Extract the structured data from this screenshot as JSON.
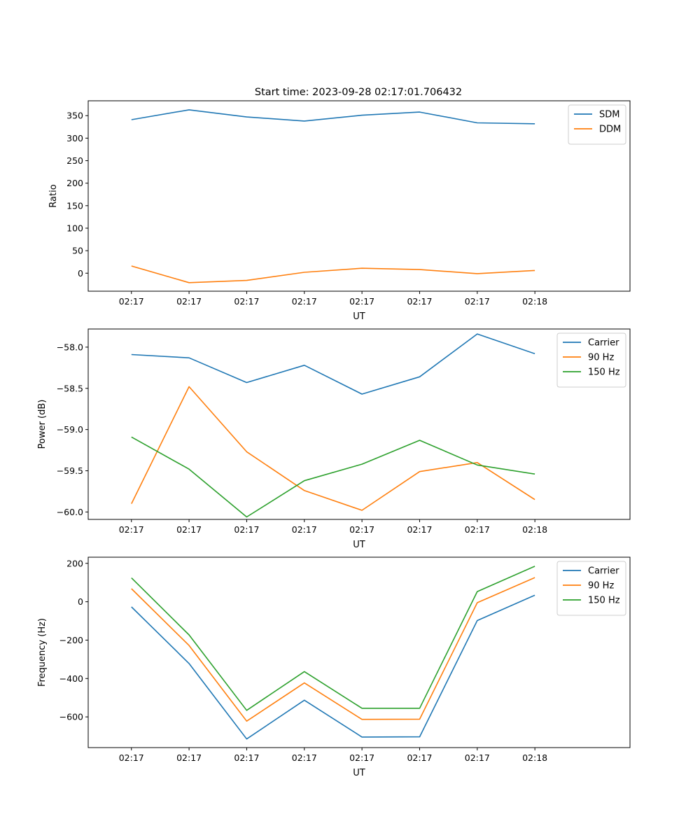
{
  "figure_title": "Start time: 2023-09-28 02:17:01.706432",
  "chart_data": [
    {
      "type": "line",
      "title": "Start time: 2023-09-28 02:17:01.706432",
      "xlabel": "UT",
      "ylabel": "Ratio",
      "x_tick_labels": [
        "02:17",
        "02:17",
        "02:17",
        "02:17",
        "02:17",
        "02:17",
        "02:17",
        "02:18"
      ],
      "x_index": [
        0,
        1,
        2,
        3,
        4,
        5,
        6,
        7
      ],
      "xlim": [
        -0.75,
        8.65
      ],
      "ylim": [
        -40,
        383
      ],
      "yticks": [
        0,
        50,
        100,
        150,
        200,
        250,
        300,
        350
      ],
      "ytick_labels": [
        "0",
        "50",
        "100",
        "150",
        "200",
        "250",
        "300",
        "350"
      ],
      "legend": "upper right",
      "series": [
        {
          "name": "SDM",
          "color": "#1f77b4",
          "values": [
            341,
            363,
            347,
            338,
            351,
            358,
            334,
            332
          ]
        },
        {
          "name": "DDM",
          "color": "#ff7f0e",
          "values": [
            16,
            -21,
            -16,
            2,
            11,
            8,
            -1,
            6
          ]
        }
      ]
    },
    {
      "type": "line",
      "title": "",
      "xlabel": "UT",
      "ylabel": "Power (dB)",
      "x_tick_labels": [
        "02:17",
        "02:17",
        "02:17",
        "02:17",
        "02:17",
        "02:17",
        "02:17",
        "02:18"
      ],
      "x_index": [
        0,
        1,
        2,
        3,
        4,
        5,
        6,
        7
      ],
      "xlim": [
        -0.75,
        8.65
      ],
      "ylim": [
        -60.09,
        -57.78
      ],
      "yticks": [
        -60.0,
        -59.5,
        -59.0,
        -58.5,
        -58.0
      ],
      "ytick_labels": [
        "−60.0",
        "−59.5",
        "−59.0",
        "−58.5",
        "−58.0"
      ],
      "legend": "upper right",
      "series": [
        {
          "name": "Carrier",
          "color": "#1f77b4",
          "values": [
            -58.09,
            -58.13,
            -58.43,
            -58.22,
            -58.57,
            -58.36,
            -57.84,
            -58.08
          ]
        },
        {
          "name": "90 Hz",
          "color": "#ff7f0e",
          "values": [
            -59.9,
            -58.48,
            -59.27,
            -59.74,
            -59.98,
            -59.51,
            -59.4,
            -59.85
          ]
        },
        {
          "name": "150 Hz",
          "color": "#2ca02c",
          "values": [
            -59.09,
            -59.48,
            -60.06,
            -59.62,
            -59.42,
            -59.13,
            -59.43,
            -59.54
          ]
        }
      ]
    },
    {
      "type": "line",
      "title": "",
      "xlabel": "UT",
      "ylabel": "Frequency (Hz)",
      "x_tick_labels": [
        "02:17",
        "02:17",
        "02:17",
        "02:17",
        "02:17",
        "02:17",
        "02:17",
        "02:18"
      ],
      "x_index": [
        0,
        1,
        2,
        3,
        4,
        5,
        6,
        7
      ],
      "xlim": [
        -0.75,
        8.65
      ],
      "ylim": [
        -760,
        232
      ],
      "yticks": [
        -600,
        -400,
        -200,
        0,
        200
      ],
      "ytick_labels": [
        "−600",
        "−400",
        "−200",
        "0",
        "200"
      ],
      "legend": "upper right",
      "series": [
        {
          "name": "Carrier",
          "color": "#1f77b4",
          "values": [
            -27,
            -322,
            -715,
            -513,
            -705,
            -704,
            -98,
            34
          ]
        },
        {
          "name": "90 Hz",
          "color": "#ff7f0e",
          "values": [
            68,
            -228,
            -622,
            -423,
            -613,
            -612,
            -5,
            126
          ]
        },
        {
          "name": "150 Hz",
          "color": "#2ca02c",
          "values": [
            124,
            -173,
            -566,
            -364,
            -555,
            -555,
            53,
            185
          ]
        }
      ]
    }
  ]
}
